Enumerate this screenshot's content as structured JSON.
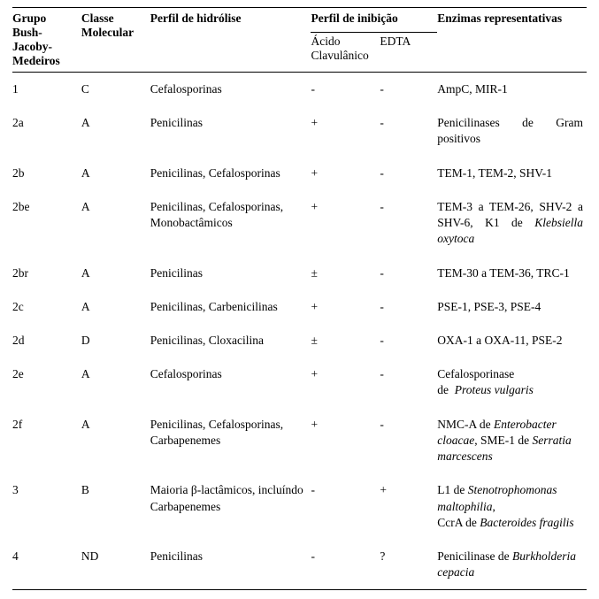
{
  "columns": {
    "group": "Grupo Bush-Jacoby-Medeiros",
    "class": "Classe Molecular",
    "hydro": "Perfil de hidrólise",
    "inhib": "Perfil de inibição",
    "inhib_ca": "Ácido Clavulânico",
    "inhib_edta": "EDTA",
    "enz": "Enzimas representativas"
  },
  "rows": [
    {
      "group": "1",
      "class": "C",
      "hydro": "Cefalosporinas",
      "ca": "-",
      "edta": "-",
      "enz_html": "AmpC, MIR-1"
    },
    {
      "group": "2a",
      "class": "A",
      "hydro": "Penicilinas",
      "ca": "+",
      "edta": "-",
      "enz_html": "Penicilinases de Gram positivos",
      "enz_justify": true
    },
    {
      "group": "2b",
      "class": "A",
      "hydro": "Penicilinas, Cefalosporinas",
      "ca": "+",
      "edta": "-",
      "enz_html": "TEM-1, TEM-2, SHV-1"
    },
    {
      "group": "2be",
      "class": "A",
      "hydro": "Penicilinas, Cefalosporinas, Monobactâmicos",
      "ca": "+",
      "edta": "-",
      "enz_html": "TEM-3 a TEM-26, SHV-2 a SHV-6, K1 de <em>Klebsiella oxytoca</em>",
      "enz_justify": true
    },
    {
      "group": "2br",
      "class": "A",
      "hydro": "Penicilinas",
      "ca": "±",
      "edta": "-",
      "enz_html": "TEM-30 a TEM-36, TRC-1",
      "enz_justify": true
    },
    {
      "group": "2c",
      "class": "A",
      "hydro": "Penicilinas, Carbenicilinas",
      "ca": "+",
      "edta": "-",
      "enz_html": "PSE-1, PSE-3, PSE-4"
    },
    {
      "group": "2d",
      "class": "D",
      "hydro": "Penicilinas, Cloxacilina",
      "ca": "±",
      "edta": "-",
      "enz_html": "OXA-1 a OXA-11, PSE-2",
      "enz_justify": true
    },
    {
      "group": "2e",
      "class": "A",
      "hydro": "Cefalosporinas",
      "ca": "+",
      "edta": "-",
      "enz_html": "Cefalosporinase<br>de &nbsp;<em>Proteus vulgaris</em>"
    },
    {
      "group": "2f",
      "class": "A",
      "hydro": "Penicilinas, Cefalosporinas, Carbapenemes",
      "ca": "+",
      "edta": "-",
      "enz_html": "NMC-A de <em>Enterobacter cloacae</em>, SME-1 de <em>Serratia marcescens</em>"
    },
    {
      "group": "3",
      "class": "B",
      "hydro": "Maioria β-lactâmicos, incluíndo Carbapenemes",
      "ca": "-",
      "edta": "+",
      "enz_html": "L1 de <em>Stenotrophomonas maltophilia</em>,<br>CcrA de <em>Bacteroides fragilis</em>"
    },
    {
      "group": "4",
      "class": "ND",
      "hydro": "Penicilinas",
      "ca": "-",
      "edta": "?",
      "enz_html": "Penicilinase de <em>Burkholderia cepacia</em>"
    }
  ],
  "widths": {
    "group": "12%",
    "class": "12%",
    "hydro": "28%",
    "ca": "12%",
    "edta": "10%",
    "enz": "26%"
  }
}
